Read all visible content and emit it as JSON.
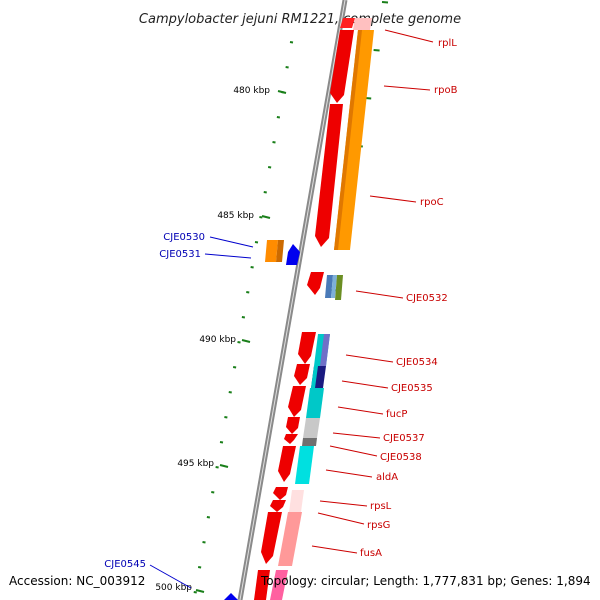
{
  "title": "Campylobacter jejuni RM1221, complete genome",
  "footer": {
    "accession": "Accession: NC_003912",
    "summary": "Topology: circular; Length: 1,777,831 bp; Genes: 1,894"
  },
  "colors": {
    "backbone": "#8a8a8a",
    "tick": "#1a7f1a",
    "label_plus": "#c80000",
    "label_minus": "#0000b4",
    "label_line_plus": "#cc0000",
    "label_line_minus": "#0000cc"
  },
  "scale_labels": [
    "480 kbp",
    "485 kbp",
    "490 kbp",
    "495 kbp",
    "500 kbp"
  ],
  "gene_labels": [
    {
      "name": "rplL",
      "strand": "plus"
    },
    {
      "name": "rpoB",
      "strand": "plus"
    },
    {
      "name": "rpoC",
      "strand": "plus"
    },
    {
      "name": "CJE0530",
      "strand": "minus"
    },
    {
      "name": "CJE0531",
      "strand": "minus"
    },
    {
      "name": "CJE0532",
      "strand": "plus"
    },
    {
      "name": "CJE0534",
      "strand": "plus"
    },
    {
      "name": "CJE0535",
      "strand": "plus"
    },
    {
      "name": "fucP",
      "strand": "plus"
    },
    {
      "name": "CJE0537",
      "strand": "plus"
    },
    {
      "name": "CJE0538",
      "strand": "plus"
    },
    {
      "name": "aldA",
      "strand": "plus"
    },
    {
      "name": "rpsL",
      "strand": "plus"
    },
    {
      "name": "rpsG",
      "strand": "plus"
    },
    {
      "name": "fusA",
      "strand": "plus"
    },
    {
      "name": "CJE0545",
      "strand": "minus"
    }
  ]
}
